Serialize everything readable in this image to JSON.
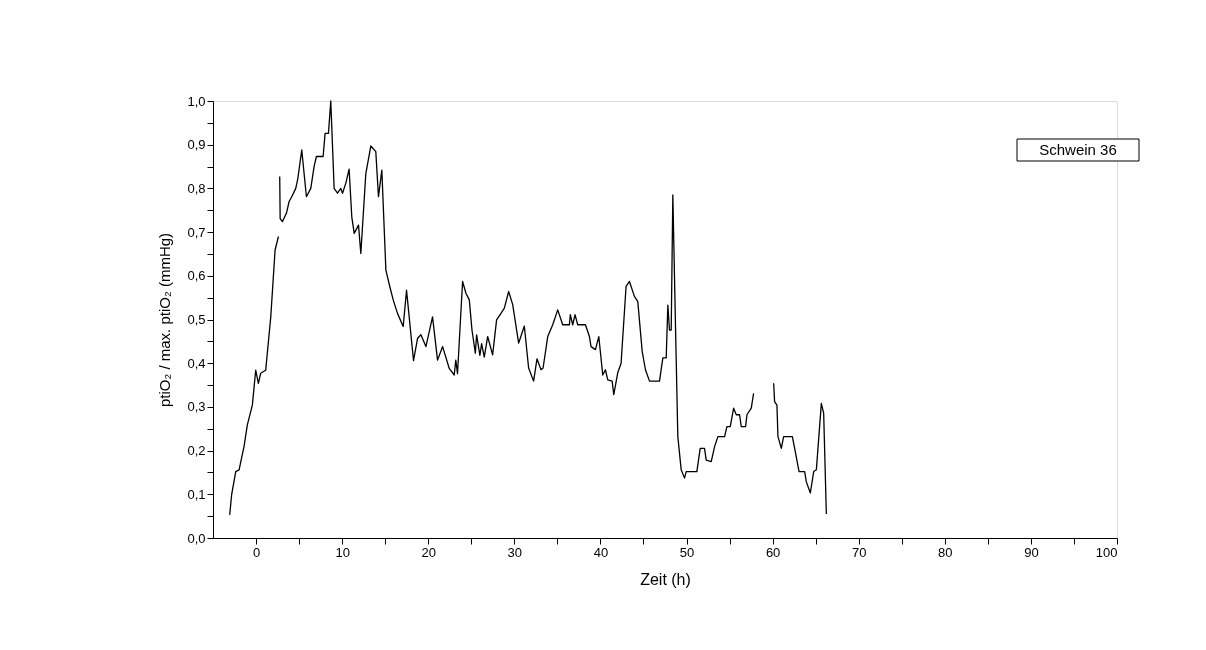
{
  "chart_data": {
    "type": "line",
    "xlabel": "Zeit (h)",
    "ylabel": "ptiO₂ / max. ptiO₂ (mmHg)",
    "annotations": [
      "Schwein 36"
    ],
    "x": [
      -3.06,
      -2.83,
      -2.36,
      -1.97,
      -1.4,
      -1.01,
      -0.43,
      -0.04,
      0.27,
      0.54,
      1.12,
      1.71,
      2.21,
      2.6,
      2.7,
      2.75,
      2.8,
      3.06,
      3.53,
      3.84,
      4.15,
      4.61,
      4.84,
      5.31,
      5.85,
      6.36,
      6.74,
      7.01,
      7.79,
      8.02,
      8.41,
      8.68,
      9.07,
      9.46,
      9.84,
      10.04,
      10.43,
      10.81,
      11.12,
      11.4,
      11.9,
      12.17,
      12.75,
      13.33,
      13.91,
      14.22,
      14.61,
      15.08,
      15.54,
      15.93,
      16.43,
      17.09,
      17.48,
      18.29,
      18.76,
      19.15,
      19.73,
      20.5,
      21.08,
      21.67,
      22.44,
      23.02,
      23.2,
      23.4,
      23.99,
      24.38,
      24.77,
      25.08,
      25.47,
      25.62,
      26.0,
      26.2,
      26.51,
      26.9,
      27.48,
      27.94,
      28.45,
      28.84,
      29.34,
      29.81,
      30.5,
      31.16,
      31.66,
      32.24,
      32.63,
      33.1,
      33.34,
      33.88,
      34.46,
      35.04,
      35.62,
      36.4,
      36.5,
      36.78,
      37.05,
      37.36,
      38.26,
      38.72,
      38.91,
      39.42,
      39.81,
      40.27,
      40.58,
      40.85,
      41.36,
      41.55,
      42.01,
      42.4,
      42.98,
      43.37,
      43.95,
      44.34,
      44.85,
      45.23,
      45.7,
      46.86,
      47.25,
      47.64,
      47.83,
      48.02,
      48.22,
      48.41,
      48.72,
      48.99,
      49.38,
      49.77,
      49.96,
      51.2,
      51.59,
      52.09,
      52.29,
      52.87,
      53.26,
      53.64,
      54.42,
      54.69,
      55.08,
      55.47,
      55.78,
      56.16,
      56.36,
      56.86,
      57.02,
      57.52,
      57.79,
      59.0,
      60.12,
      60.23,
      60.5,
      60.62,
      61.01,
      61.28,
      62.29,
      62.56,
      63.07,
      63.72,
      63.91,
      64.38,
      64.77,
      65.08,
      65.66,
      65.93,
      66.24
    ],
    "series": [
      {
        "color": "#000000",
        "values": [
          0.053,
          0.1,
          0.152,
          0.156,
          0.209,
          0.259,
          0.304,
          0.384,
          0.354,
          0.377,
          0.384,
          0.506,
          0.659,
          0.69,
          null,
          0.827,
          0.731,
          0.724,
          0.743,
          0.77,
          0.781,
          0.8,
          0.821,
          0.888,
          0.781,
          0.8,
          0.85,
          0.873,
          0.873,
          0.926,
          0.926,
          1.0,
          0.8,
          0.789,
          0.8,
          0.789,
          0.812,
          0.844,
          0.735,
          0.697,
          0.716,
          0.651,
          0.834,
          0.897,
          0.884,
          0.781,
          0.842,
          0.613,
          0.575,
          0.545,
          0.514,
          0.484,
          0.567,
          0.406,
          0.457,
          0.465,
          0.438,
          0.506,
          0.407,
          0.438,
          0.388,
          0.373,
          0.407,
          0.376,
          0.587,
          0.56,
          0.545,
          0.476,
          0.423,
          0.465,
          0.418,
          0.445,
          0.414,
          0.461,
          0.419,
          0.499,
          0.514,
          0.526,
          0.564,
          0.534,
          0.446,
          0.485,
          0.389,
          0.359,
          0.41,
          0.385,
          0.389,
          0.461,
          0.488,
          0.522,
          0.488,
          0.488,
          0.511,
          0.488,
          0.511,
          0.488,
          0.488,
          0.461,
          0.438,
          0.431,
          0.461,
          0.373,
          0.385,
          0.362,
          0.359,
          0.328,
          0.378,
          0.4,
          0.576,
          0.587,
          0.553,
          0.541,
          0.427,
          0.385,
          0.359,
          0.359,
          0.412,
          0.412,
          0.533,
          0.476,
          0.476,
          0.785,
          0.484,
          0.232,
          0.156,
          0.137,
          0.152,
          0.152,
          0.205,
          0.205,
          0.178,
          0.175,
          0.209,
          0.232,
          0.232,
          0.255,
          0.255,
          0.297,
          0.282,
          0.282,
          0.255,
          0.255,
          0.282,
          0.297,
          0.331,
          null,
          0.354,
          0.312,
          0.304,
          0.232,
          0.205,
          0.232,
          0.232,
          0.205,
          0.152,
          0.152,
          0.129,
          0.103,
          0.152,
          0.156,
          0.308,
          0.285,
          0.055
        ]
      }
    ],
    "xlim": [
      -5,
      100
    ],
    "xticks": [
      0,
      {
        "value": 5,
        "label": null
      },
      10,
      {
        "value": 15,
        "label": null
      },
      20,
      {
        "value": 25,
        "label": null
      },
      30,
      {
        "value": 35,
        "label": null
      },
      40,
      {
        "value": 45,
        "label": null
      },
      50,
      {
        "value": 55,
        "label": null
      },
      60,
      {
        "value": 65,
        "label": null
      },
      70,
      {
        "value": 75,
        "label": null
      },
      80,
      {
        "value": 85,
        "label": null
      },
      90,
      {
        "value": 95,
        "label": null
      },
      100
    ],
    "ylim": [
      0,
      1
    ],
    "yticks": [
      {
        "value": 0,
        "label": "0,0"
      },
      {
        "value": 0.05,
        "label": null
      },
      {
        "value": 0.1,
        "label": "0,1"
      },
      {
        "value": 0.15,
        "label": null
      },
      {
        "value": 0.2,
        "label": "0,2"
      },
      {
        "value": 0.25,
        "label": null
      },
      {
        "value": 0.3,
        "label": "0,3"
      },
      {
        "value": 0.35,
        "label": null
      },
      {
        "value": 0.4,
        "label": "0,4"
      },
      {
        "value": 0.45,
        "label": null
      },
      {
        "value": 0.5,
        "label": "0,5"
      },
      {
        "value": 0.55,
        "label": null
      },
      {
        "value": 0.6,
        "label": "0,6"
      },
      {
        "value": 0.65,
        "label": null
      },
      {
        "value": 0.7,
        "label": "0,7"
      },
      {
        "value": 0.75,
        "label": null
      },
      {
        "value": 0.8,
        "label": "0,8"
      },
      {
        "value": 0.85,
        "label": null
      },
      {
        "value": 0.9,
        "label": "0,9"
      },
      {
        "value": 0.95,
        "label": null
      },
      {
        "value": 1.0,
        "label": "1,0"
      }
    ],
    "grid": false,
    "marker": "none",
    "line_style": "solid"
  }
}
